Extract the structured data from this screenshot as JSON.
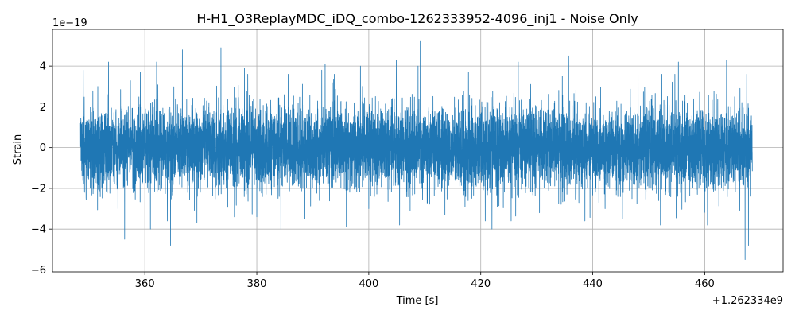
{
  "chart_data": {
    "type": "line",
    "title": "H-H1_O3ReplayMDC_iDQ_combo-1262333952-4096_inj1 - Noise Only",
    "xlabel": "Time [s]",
    "ylabel": "Strain",
    "x_offset_label": "+1.262334e9",
    "y_scale_label": "1e−19",
    "xlim": [
      343.5,
      474
    ],
    "ylim": [
      -6.1,
      5.8
    ],
    "x_range": [
      348.5,
      468.5
    ],
    "x_ticks": [
      360,
      380,
      400,
      420,
      440,
      460
    ],
    "y_ticks": [
      -6,
      -4,
      -2,
      0,
      2,
      4
    ],
    "grid": true,
    "line_color": "#1f77b4",
    "series": [
      {
        "typical_amplitude": 1.0,
        "max": 5.25,
        "min": -5.5,
        "x": [
          349,
          351.6,
          353.5,
          355.2,
          356.4,
          359.2,
          361.0,
          362.1,
          364.6,
          366.7,
          369.3,
          373.6,
          376.0,
          377.8,
          380.0,
          384.3,
          385.6,
          388.6,
          391.6,
          392.2,
          396.0,
          398.5,
          400.0,
          404.9,
          405.5,
          408.8,
          409.2,
          413.6,
          417.8,
          420.8,
          422.0,
          426.7,
          430.5,
          432.9,
          435.7,
          438.6,
          442.2,
          445.3,
          448.1,
          452.1,
          455.3,
          460.5,
          463.9,
          467.2,
          467.8
        ],
        "y": [
          3.8,
          3.0,
          4.2,
          -3.0,
          -4.5,
          3.7,
          -4.0,
          4.2,
          -4.8,
          4.8,
          -3.7,
          4.9,
          -3.4,
          3.9,
          -3.4,
          -4.0,
          3.6,
          -3.5,
          3.8,
          4.1,
          -3.9,
          4.0,
          -3.0,
          4.3,
          -3.8,
          4.0,
          5.25,
          -3.3,
          3.7,
          -3.6,
          -4.0,
          4.2,
          -3.2,
          4.0,
          4.5,
          -3.6,
          -3.0,
          -3.5,
          4.2,
          -3.8,
          4.2,
          -3.8,
          4.3,
          -5.5,
          -4.8
        ]
      }
    ]
  }
}
